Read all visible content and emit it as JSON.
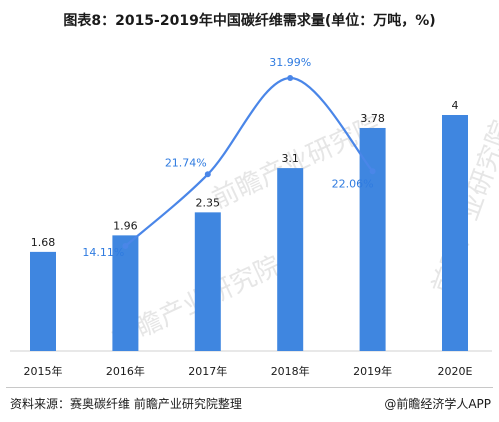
{
  "chart_data": {
    "type": "bar",
    "title": "图表8：2015-2019年中国碳纤维需求量(单位：万吨，%)",
    "categories": [
      "2015年",
      "2016年",
      "2017年",
      "2018年",
      "2019年",
      "2020E"
    ],
    "values": [
      1.68,
      1.96,
      2.35,
      3.1,
      3.78,
      4
    ],
    "value_labels": [
      "1.68",
      "1.96",
      "2.35",
      "3.1",
      "3.78",
      "4"
    ],
    "growth": [
      {
        "category": "2016年",
        "value": 14.11,
        "label": "14.11%"
      },
      {
        "category": "2017年",
        "value": 21.74,
        "label": "21.74%"
      },
      {
        "category": "2018年",
        "value": 31.99,
        "label": "31.99%"
      },
      {
        "category": "2019年",
        "value": 22.06,
        "label": "22.06%"
      }
    ],
    "ylim": [
      0,
      5
    ],
    "colors": {
      "bar": "#3f86e0",
      "line": "#4a86e8",
      "growth_text": "#2f7be0"
    }
  },
  "footer": {
    "source": "资料来源：赛奥碳纤维 前瞻产业研究院整理",
    "brand": "@前瞻经济学人APP"
  },
  "watermarks": [
    "前瞻产业研究院",
    "前瞻产业研究院",
    "前瞻产业研究院"
  ]
}
